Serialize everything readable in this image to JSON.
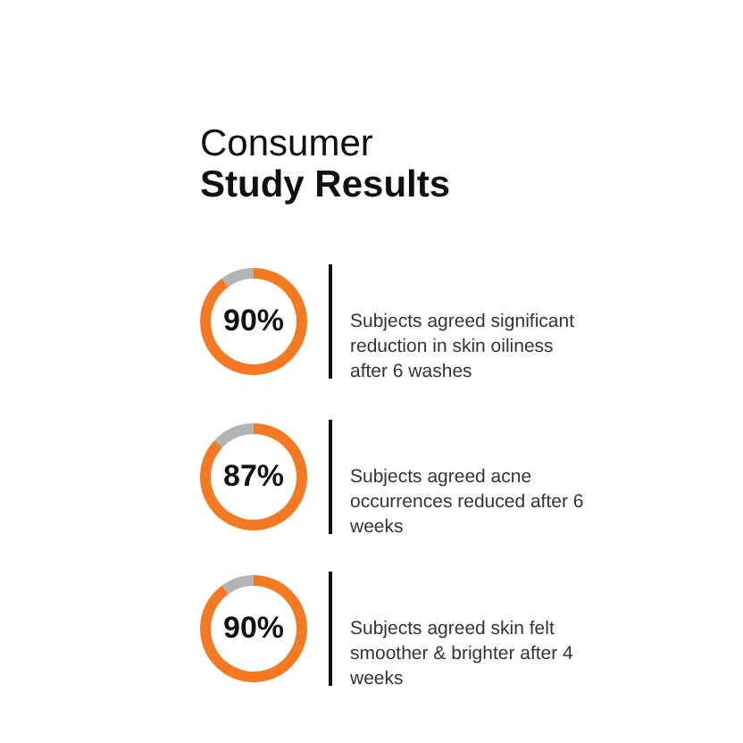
{
  "chart_data": [
    {
      "type": "donut",
      "title": "Consumer",
      "subtitle": "Study Results",
      "categories": [
        null,
        null
      ],
      "values": [
        90,
        10
      ],
      "colors": [
        "#f47920",
        "#b3b3b3"
      ],
      "value_labels": [
        "90%",
        null
      ],
      "annotations": [
        "Subjects agreed significant reduction in skin oiliness after 6 washes"
      ]
    },
    {
      "type": "donut",
      "categories": [
        null,
        null
      ],
      "values": [
        87,
        13
      ],
      "colors": [
        "#f47920",
        "#b3b3b3"
      ],
      "value_labels": [
        "87%",
        null
      ],
      "annotations": [
        "Subjects agreed acne occurrences reduced after 6 weeks"
      ]
    },
    {
      "type": "donut",
      "categories": [
        null,
        null
      ],
      "values": [
        90,
        10
      ],
      "colors": [
        "#f47920",
        "#b3b3b3"
      ],
      "value_labels": [
        "90%",
        null
      ],
      "annotations": [
        "Subjects agreed skin felt smoother & brighter after 4 weeks"
      ]
    }
  ]
}
